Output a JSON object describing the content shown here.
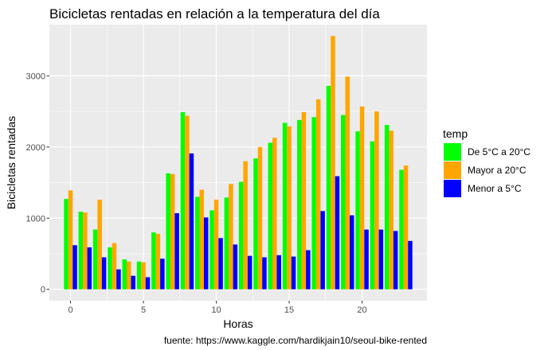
{
  "chart_data": {
    "type": "bar",
    "title": "Bicicletas rentadas en relación a la temperatura del día",
    "xlabel": "Horas",
    "ylabel": "Bicicletas rentadas",
    "caption": "fuente: https://www.kaggle.com/hardikjain10/seoul-bike-rented",
    "xlim": [
      -1.45,
      24.45
    ],
    "ylim": [
      -160,
      3720
    ],
    "x_ticks": [
      0,
      5,
      10,
      15,
      20
    ],
    "y_ticks": [
      0,
      1000,
      2000,
      3000
    ],
    "grid": true,
    "legend_position": "right",
    "legend_title": "temp",
    "background_color": "#ebebeb",
    "grid_color": "#ffffff",
    "x": [
      0,
      1,
      2,
      3,
      4,
      5,
      6,
      7,
      8,
      9,
      10,
      11,
      12,
      13,
      14,
      15,
      16,
      17,
      18,
      19,
      20,
      21,
      22,
      23
    ],
    "series": [
      {
        "name": "De 5°C a 20°C",
        "color": "#00ff00",
        "values": [
          1270,
          1090,
          840,
          590,
          420,
          390,
          800,
          1630,
          2490,
          1300,
          1110,
          1290,
          1510,
          1840,
          2060,
          2340,
          2380,
          2420,
          2860,
          2450,
          2220,
          2080,
          2310,
          1680
        ]
      },
      {
        "name": "Mayor a 20°C",
        "color": "#ffa500",
        "values": [
          1390,
          1080,
          1260,
          650,
          390,
          380,
          780,
          1620,
          2440,
          1400,
          1260,
          1480,
          1800,
          2000,
          2130,
          2290,
          2490,
          2670,
          3560,
          2990,
          2570,
          2500,
          2230,
          1740
        ]
      },
      {
        "name": "Menor a 5°C",
        "color": "#0000ff",
        "values": [
          620,
          590,
          450,
          280,
          190,
          170,
          430,
          1070,
          1910,
          1010,
          720,
          630,
          470,
          450,
          480,
          460,
          550,
          1100,
          1590,
          1040,
          840,
          840,
          820,
          680
        ]
      }
    ]
  }
}
